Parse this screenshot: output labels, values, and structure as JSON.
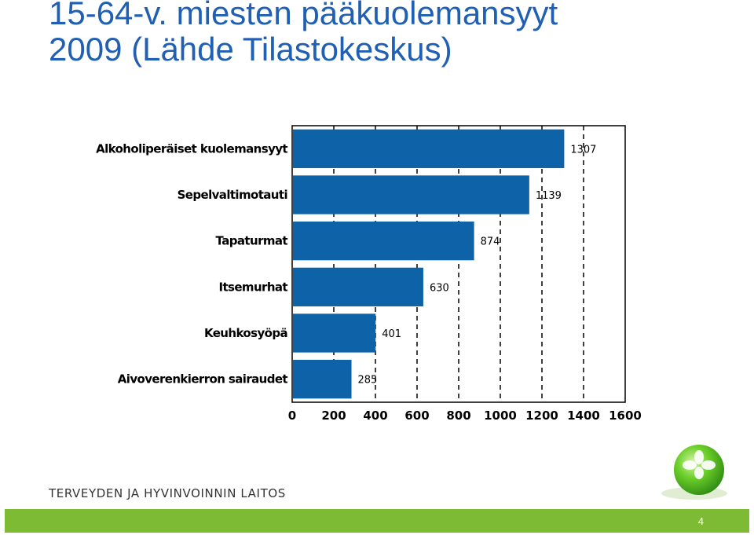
{
  "slide": {
    "title_line1": "15-64-v. miesten pääkuolemansyyt",
    "title_line2": "2009 (Lähde Tilastokeskus)",
    "organization": "TERVEYDEN JA HYVINVOINNIN LAITOS",
    "page_number": "4",
    "logo_icon": "thl-green-sphere-logo-icon"
  },
  "colors": {
    "title": "#1f5fb4",
    "bar": "#0e62a8",
    "footer": "#7dbb35",
    "logo": "#4caf1e"
  },
  "chart_data": {
    "type": "bar",
    "orientation": "horizontal",
    "categories": [
      "Alkoholiperäiset kuolemansyyt",
      "Sepelvaltimotauti",
      "Tapaturmat",
      "Itsemurhat",
      "Keuhkosyöpä",
      "Aivoverenkierron sairaudet"
    ],
    "values": [
      1307,
      1139,
      874,
      630,
      401,
      285
    ],
    "data_labels": [
      "1307",
      "1139",
      "874",
      "630",
      "401",
      "285"
    ],
    "x_ticks": [
      "0",
      "200",
      "400",
      "600",
      "800",
      "1000",
      "1200",
      "1400",
      "1600"
    ],
    "xlim": [
      0,
      1600
    ],
    "grid": "vertical dashed",
    "legend": "none"
  }
}
